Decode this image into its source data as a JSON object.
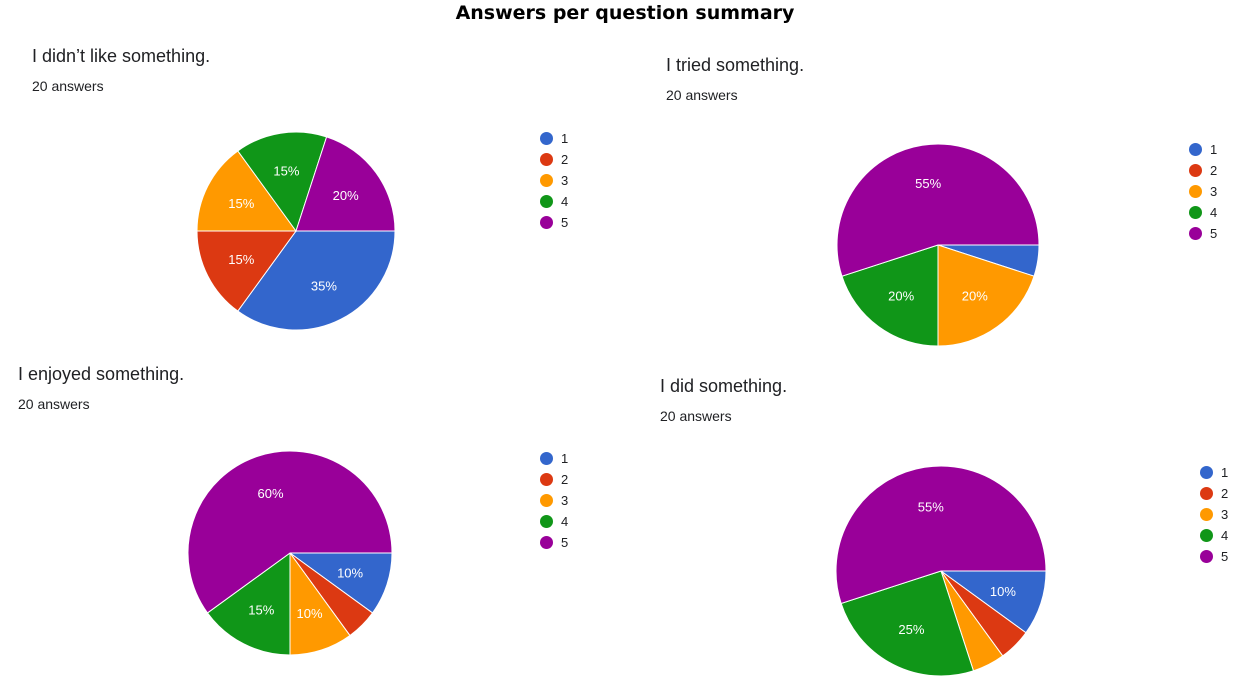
{
  "page": {
    "title": "Answers per question summary"
  },
  "colors": {
    "1": "#3366cc",
    "2": "#dc3912",
    "3": "#ff9900",
    "4": "#109618",
    "5": "#990099"
  },
  "chart_data": [
    {
      "type": "pie",
      "title": "I didn’t like something.",
      "subtitle": "20 answers",
      "categories": [
        "1",
        "2",
        "3",
        "4",
        "5"
      ],
      "values": [
        35,
        15,
        15,
        15,
        20
      ],
      "slice_labels": [
        "35%",
        "15%",
        "15%",
        "15%",
        "20%"
      ],
      "legend": "right"
    },
    {
      "type": "pie",
      "title": "I tried something.",
      "subtitle": "20 answers",
      "categories": [
        "1",
        "2",
        "3",
        "4",
        "5"
      ],
      "values": [
        5,
        0,
        20,
        20,
        55
      ],
      "slice_labels": [
        "",
        "",
        "20%",
        "20%",
        "55%"
      ],
      "legend": "right"
    },
    {
      "type": "pie",
      "title": "I enjoyed something.",
      "subtitle": "20 answers",
      "categories": [
        "1",
        "2",
        "3",
        "4",
        "5"
      ],
      "values": [
        10,
        5,
        10,
        15,
        60
      ],
      "slice_labels": [
        "10%",
        "",
        "10%",
        "15%",
        "60%"
      ],
      "legend": "right"
    },
    {
      "type": "pie",
      "title": "I did something.",
      "subtitle": "20 answers",
      "categories": [
        "1",
        "2",
        "3",
        "4",
        "5"
      ],
      "values": [
        10,
        5,
        5,
        25,
        55
      ],
      "slice_labels": [
        "10%",
        "",
        "",
        "25%",
        "55%"
      ],
      "legend": "right"
    }
  ]
}
